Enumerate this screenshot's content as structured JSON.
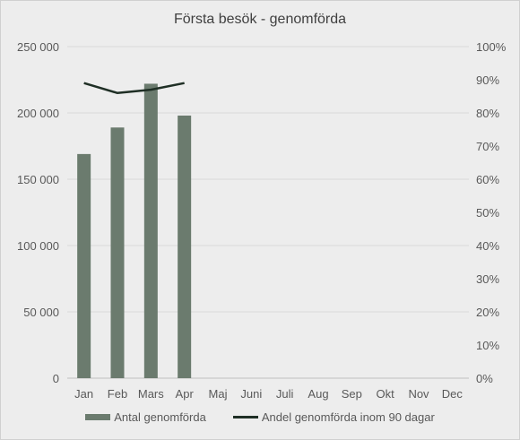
{
  "chart_data": {
    "type": "bar",
    "title": "Första besök - genomförda",
    "categories": [
      "Jan",
      "Feb",
      "Mars",
      "Apr",
      "Maj",
      "Juni",
      "Juli",
      "Aug",
      "Sep",
      "Okt",
      "Nov",
      "Dec"
    ],
    "series": [
      {
        "name": "Antal genomförda",
        "type": "bar",
        "axis": "left",
        "color": "#6b7b6e",
        "values": [
          169000,
          189000,
          222000,
          198000,
          null,
          null,
          null,
          null,
          null,
          null,
          null,
          null
        ]
      },
      {
        "name": "Andel genomförda inom 90 dagar",
        "type": "line",
        "axis": "right",
        "color": "#1f2f25",
        "values": [
          0.89,
          0.86,
          0.87,
          0.89,
          null,
          null,
          null,
          null,
          null,
          null,
          null,
          null
        ]
      }
    ],
    "y_left": {
      "ylim": [
        0,
        250000
      ],
      "ticks": [
        0,
        50000,
        100000,
        150000,
        200000,
        250000
      ],
      "tick_labels": [
        "0",
        "50 000",
        "100 000",
        "150 000",
        "200 000",
        "250 000"
      ]
    },
    "y_right": {
      "ylim": [
        0,
        1
      ],
      "ticks": [
        0,
        0.1,
        0.2,
        0.3,
        0.4,
        0.5,
        0.6,
        0.7,
        0.8,
        0.9,
        1.0
      ],
      "tick_labels": [
        "0%",
        "10%",
        "20%",
        "30%",
        "40%",
        "50%",
        "60%",
        "70%",
        "80%",
        "90%",
        "100%"
      ]
    },
    "grid": true,
    "legend_position": "bottom",
    "xlabel": "",
    "ylabel": ""
  }
}
